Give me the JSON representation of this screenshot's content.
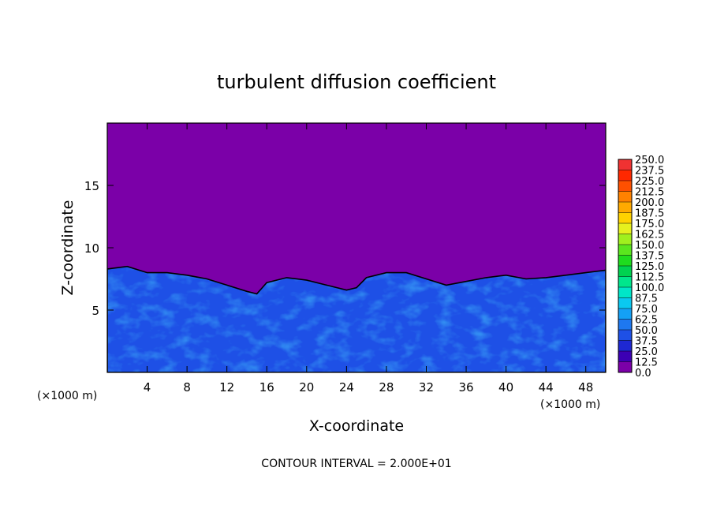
{
  "chart_data": {
    "type": "heatmap",
    "title": "turbulent diffusion coefficient",
    "xlabel": "X-coordinate",
    "ylabel": "Z-coordinate",
    "x_unit_left": "(×1000 m)",
    "x_unit_right": "(×1000 m)",
    "xlim": [
      0,
      50
    ],
    "ylim": [
      0,
      20
    ],
    "x_ticks": [
      4,
      8,
      12,
      16,
      20,
      24,
      28,
      32,
      36,
      40,
      44,
      48
    ],
    "y_ticks": [
      5,
      10,
      15
    ],
    "footer": "CONTOUR INTERVAL = 2.000E+01",
    "background_level": 0.0,
    "boundary_layer_top": [
      {
        "x": 0,
        "z": 8.3
      },
      {
        "x": 2,
        "z": 8.5
      },
      {
        "x": 4,
        "z": 8.0
      },
      {
        "x": 6,
        "z": 8.0
      },
      {
        "x": 8,
        "z": 7.8
      },
      {
        "x": 10,
        "z": 7.5
      },
      {
        "x": 12,
        "z": 7.0
      },
      {
        "x": 14,
        "z": 6.5
      },
      {
        "x": 15,
        "z": 6.3
      },
      {
        "x": 16,
        "z": 7.2
      },
      {
        "x": 18,
        "z": 7.6
      },
      {
        "x": 20,
        "z": 7.4
      },
      {
        "x": 22,
        "z": 7.0
      },
      {
        "x": 24,
        "z": 6.6
      },
      {
        "x": 25,
        "z": 6.8
      },
      {
        "x": 26,
        "z": 7.6
      },
      {
        "x": 28,
        "z": 8.0
      },
      {
        "x": 30,
        "z": 8.0
      },
      {
        "x": 32,
        "z": 7.5
      },
      {
        "x": 34,
        "z": 7.0
      },
      {
        "x": 36,
        "z": 7.3
      },
      {
        "x": 38,
        "z": 7.6
      },
      {
        "x": 40,
        "z": 7.8
      },
      {
        "x": 42,
        "z": 7.5
      },
      {
        "x": 44,
        "z": 7.6
      },
      {
        "x": 46,
        "z": 7.8
      },
      {
        "x": 48,
        "z": 8.0
      },
      {
        "x": 50,
        "z": 8.2
      }
    ],
    "colorbar": {
      "levels": [
        "0.0",
        "12.5",
        "25.0",
        "37.5",
        "50.0",
        "62.5",
        "75.0",
        "87.5",
        "100.0",
        "112.5",
        "125.0",
        "137.5",
        "150.0",
        "162.5",
        "175.0",
        "187.5",
        "200.0",
        "212.5",
        "225.0",
        "237.5",
        "250.0"
      ],
      "colors": [
        "#7b00a8",
        "#3c00b4",
        "#1e28d2",
        "#1e50e6",
        "#1e78f0",
        "#14a0f5",
        "#0ac8f0",
        "#00e6c8",
        "#00e68c",
        "#00d250",
        "#1edc1e",
        "#5ae61e",
        "#a0f01e",
        "#e6f01e",
        "#ffd200",
        "#ffaa00",
        "#ff8200",
        "#ff5000",
        "#ff2800",
        "#f03232",
        "#f08c8c"
      ]
    }
  }
}
